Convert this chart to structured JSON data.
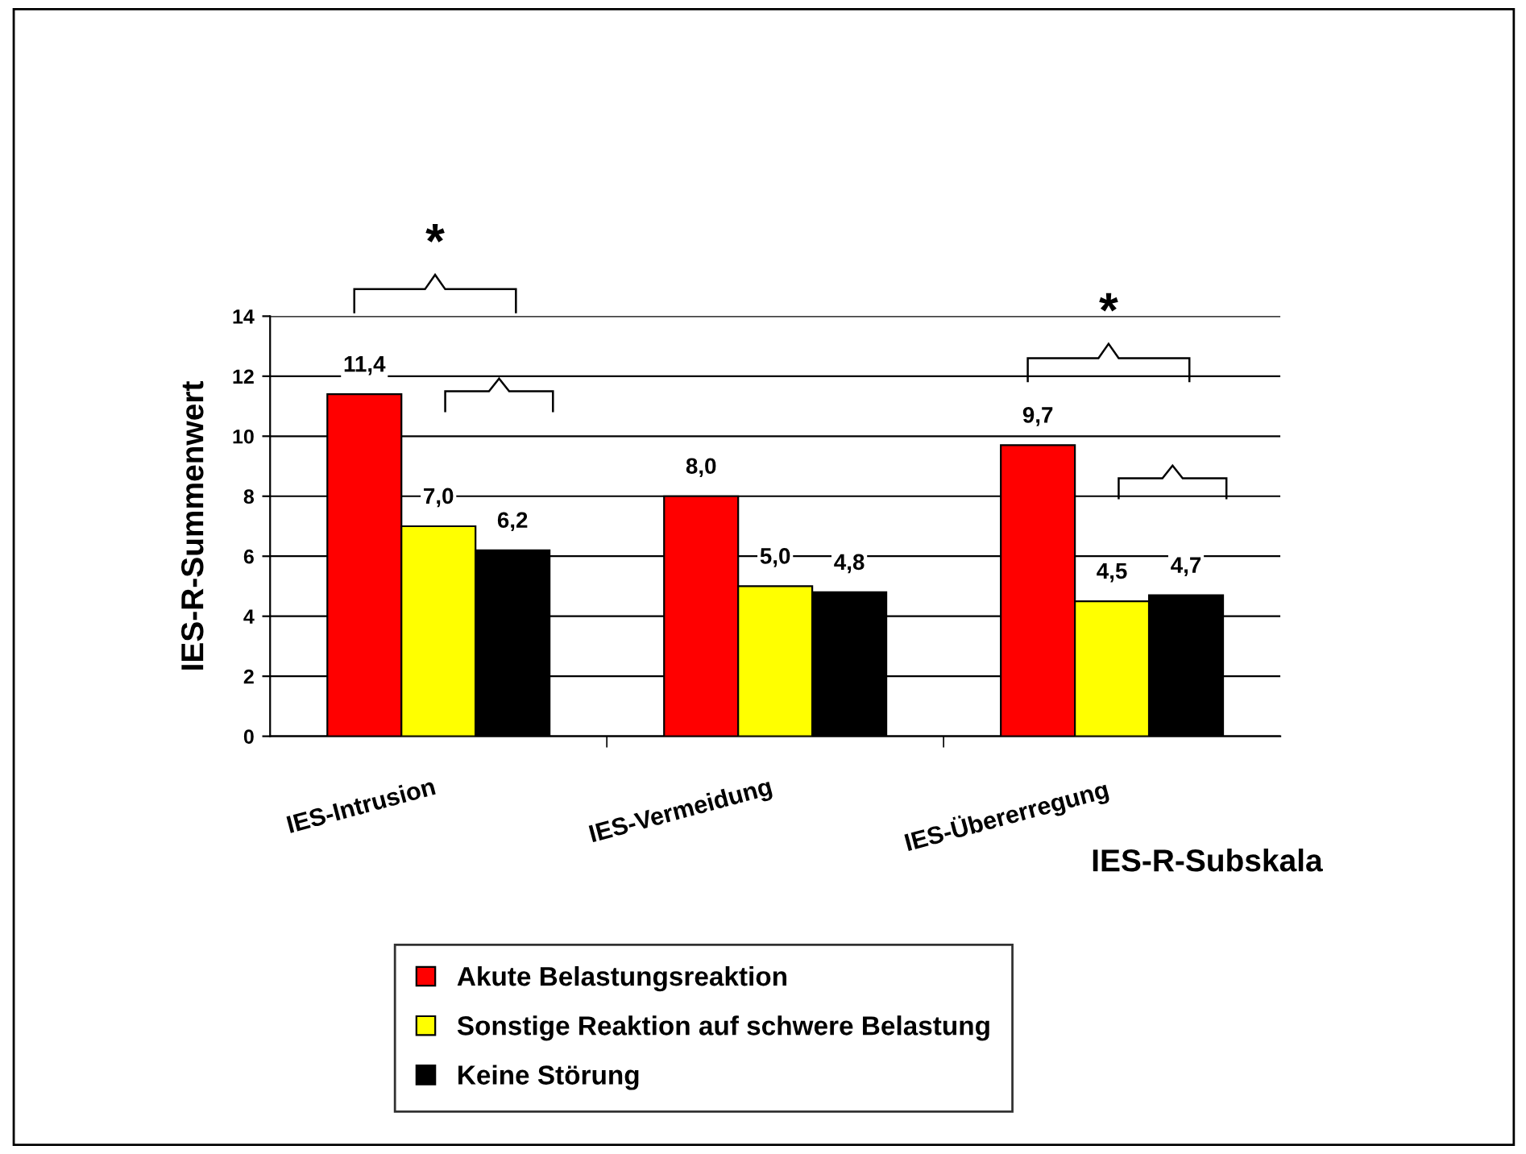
{
  "chart_data": {
    "type": "bar",
    "xlabel": "IES-R-Subskala",
    "ylabel": "IES-R-Summenwert",
    "categories": [
      "IES-Intrusion",
      "IES-Vermeidung",
      "IES-Übererregung"
    ],
    "series": [
      {
        "name": "Akute Belastungsreaktion",
        "color": "#ff0000",
        "values": [
          11.4,
          8.0,
          9.7
        ],
        "value_labels": [
          "11,4",
          "8,0",
          "9,7"
        ]
      },
      {
        "name": "Sonstige Reaktion auf schwere Belastung",
        "color": "#ffff00",
        "values": [
          7.0,
          5.0,
          4.5
        ],
        "value_labels": [
          "7,0",
          "5,0",
          "4,5"
        ]
      },
      {
        "name": "Keine Störung",
        "color": "#000000",
        "values": [
          6.2,
          4.8,
          4.7
        ],
        "value_labels": [
          "6,2",
          "4,8",
          "4,7"
        ]
      }
    ],
    "ylim": [
      0,
      14
    ],
    "yticks": [
      0,
      2,
      4,
      6,
      8,
      10,
      12,
      14
    ],
    "grid": "y",
    "legend": "bottom",
    "annotations": [
      "*",
      "*"
    ]
  }
}
